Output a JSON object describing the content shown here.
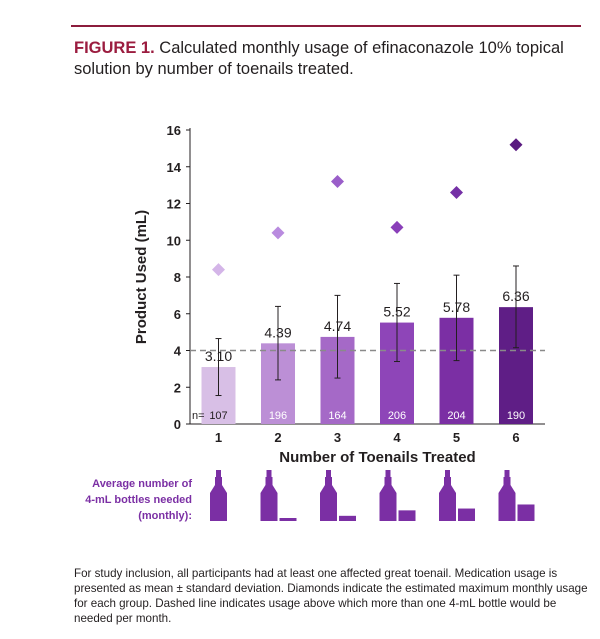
{
  "figure": {
    "label": "FIGURE 1.",
    "caption": "Calculated monthly usage of efinaconazole 10% topical solution by number of toenails treated.",
    "footnote": "For study inclusion, all participants had at least one affected great toenail. Medication usage is presented as mean ± standard deviation. Diamonds indicate the estimated maximum monthly usage for each group. Dashed line indicates usage above which more than one 4-mL bottle would be needed per month."
  },
  "chart_data": {
    "type": "bar",
    "xlabel": "Number of Toenails Treated",
    "ylabel": "Product Used (mL)",
    "ylim": [
      0,
      16
    ],
    "yticks": [
      "0",
      "2",
      "4",
      "6",
      "8",
      "10",
      "12",
      "14",
      "16"
    ],
    "categories": [
      "1",
      "2",
      "3",
      "4",
      "5",
      "6"
    ],
    "values": [
      3.1,
      4.39,
      4.74,
      5.52,
      5.78,
      6.36
    ],
    "value_labels": [
      "3.10",
      "4.39",
      "4.74",
      "5.52",
      "5.78",
      "6.36"
    ],
    "sd_low": [
      1.55,
      2.4,
      2.5,
      3.4,
      3.45,
      4.15
    ],
    "sd_high": [
      4.65,
      6.4,
      7.0,
      7.65,
      8.1,
      8.6
    ],
    "max_usage": [
      8.4,
      10.4,
      13.2,
      10.7,
      12.6,
      15.2
    ],
    "n_prefix": "n=",
    "n_values": [
      "107",
      "196",
      "164",
      "206",
      "204",
      "190"
    ],
    "threshold": 4,
    "bar_colors": [
      "#d8bfe6",
      "#bc8fd6",
      "#a569c7",
      "#8e45b8",
      "#7b2fa4",
      "#5f1e86"
    ],
    "diamond_colors": [
      "#d4b5e8",
      "#b98bdf",
      "#9a5ec9",
      "#8a3fb9",
      "#7530a6",
      "#5a1a80"
    ],
    "bottles_label": [
      "Average number of",
      "4-mL bottles needed",
      "(monthly):"
    ],
    "bottle_color": "#7b2fa4",
    "bottles_label_color": "#7b2fa4"
  }
}
